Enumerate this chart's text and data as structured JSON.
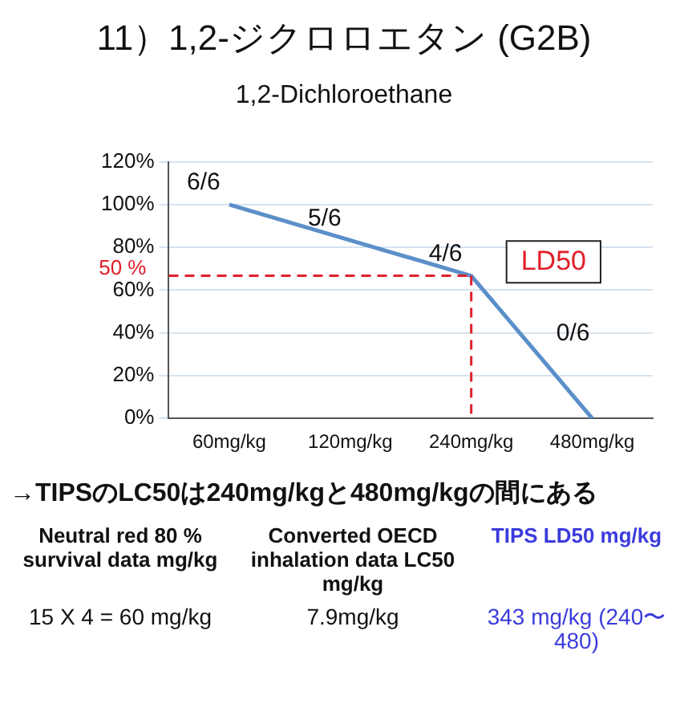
{
  "chart_data": {
    "type": "line",
    "title": "11）1,2-ジクロロエタン (G2B)",
    "subtitle": "1,2-Dichloroethane",
    "categories": [
      "60mg/kg",
      "120mg/kg",
      "240mg/kg",
      "480mg/kg"
    ],
    "series": [
      {
        "color": "#5b8fc9",
        "values": [
          100,
          83.3,
          66.7,
          0
        ]
      }
    ],
    "ylim": [
      0,
      120
    ],
    "yticks": [
      {
        "value": 0,
        "label": "0%"
      },
      {
        "value": 20,
        "label": "20%"
      },
      {
        "value": 40,
        "label": "40%"
      },
      {
        "value": 60,
        "label": "60%"
      },
      {
        "value": 80,
        "label": "80%"
      },
      {
        "value": 100,
        "label": "100%"
      },
      {
        "value": 120,
        "label": "120%"
      }
    ],
    "grid": "y",
    "legend": false,
    "marker": "none",
    "line_style": "solid",
    "ref_lines": [
      {
        "axis": "y",
        "value": 66.7,
        "color": "#e0202a",
        "line_style": "dashed"
      },
      {
        "axis": "x",
        "value": "240mg/kg",
        "color": "#e0202a",
        "line_style": "dashed"
      }
    ],
    "annotations": [
      {
        "text": "6/6",
        "x": "60mg/kg",
        "y": 100
      },
      {
        "text": "5/6",
        "x": "120mg/kg",
        "y": 83.3
      },
      {
        "text": "4/6",
        "x": "240mg/kg",
        "y": 66.7
      },
      {
        "text": "0/6",
        "x": "480mg/kg",
        "y": 0
      },
      "50 %",
      "LD50",
      "→TIPSのLC50は240mg/kgと480mg/kgの間にある",
      "Neutral red 80 % survival data mg/kg",
      "Converted OECD inhalation data LC50 mg/kg",
      "TIPS LD50 mg/kg",
      "15 X 4 = 60 mg/kg",
      "7.9mg/kg",
      "343 mg/kg (240〜480)"
    ]
  }
}
